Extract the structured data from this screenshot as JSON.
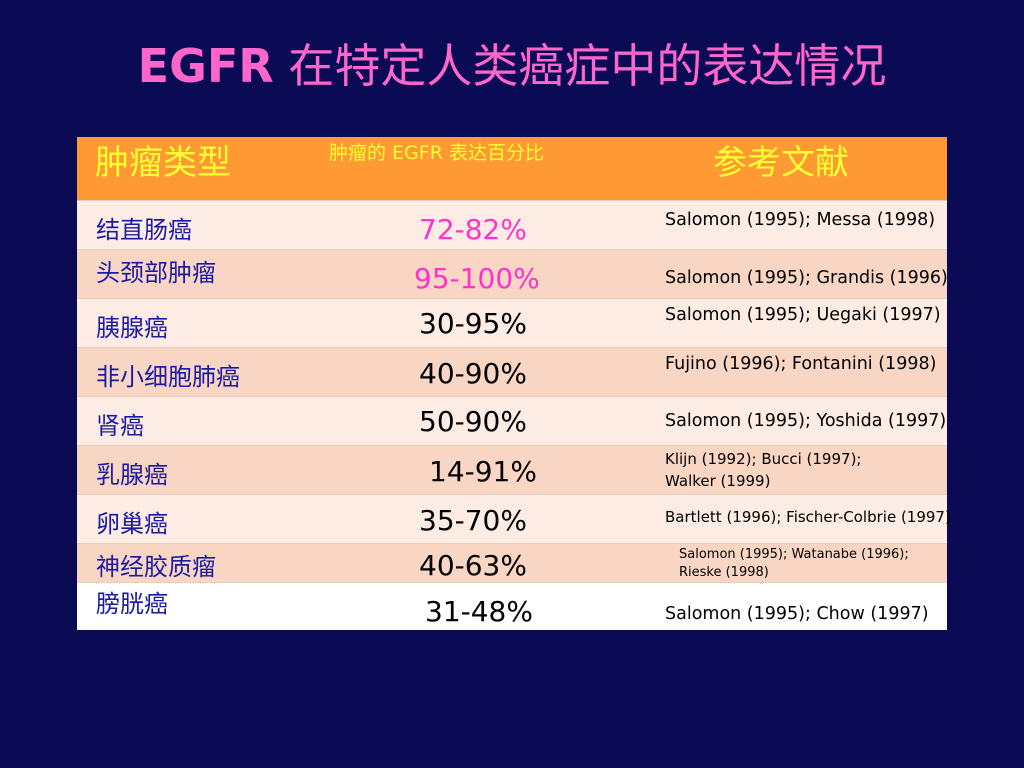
{
  "title": {
    "en": "EGFR",
    "zh": "在特定人类癌症中的表达情况"
  },
  "table": {
    "headers": {
      "type": "肿瘤类型",
      "percent": "肿瘤的 EGFR 表达百分比",
      "refs": "参考文献"
    },
    "rows": [
      {
        "type": "结直肠癌",
        "percent": "72-82%",
        "ref1": "Salomon (1995); Messa (1998)",
        "ref2": ""
      },
      {
        "type": "头颈部肿瘤",
        "percent": "95-100%",
        "ref1": "Salomon (1995); Grandis (1996)",
        "ref2": ""
      },
      {
        "type": "胰腺癌",
        "percent": "30-95%",
        "ref1": "Salomon (1995); Uegaki (1997)",
        "ref2": ""
      },
      {
        "type": "非小细胞肺癌",
        "percent": "40-90%",
        "ref1": "Fujino (1996); Fontanini (1998)",
        "ref2": ""
      },
      {
        "type": "肾癌",
        "percent": "50-90%",
        "ref1": "Salomon (1995); Yoshida (1997)",
        "ref2": ""
      },
      {
        "type": "乳腺癌",
        "percent": "14-91%",
        "ref1": "Klijn (1992); Bucci (1997);",
        "ref2": "Walker (1999)"
      },
      {
        "type": "卵巢癌",
        "percent": "35-70%",
        "ref1": "Bartlett (1996); Fischer-Colbrie (1997)",
        "ref2": ""
      },
      {
        "type": "神经胶质瘤",
        "percent": "40-63%",
        "ref1": "Salomon (1995); Watanabe (1996);",
        "ref2": "Rieske (1998)"
      },
      {
        "type": "膀胱癌",
        "percent": "31-48%",
        "ref1": "Salomon (1995); Chow (1997)",
        "ref2": ""
      }
    ]
  },
  "colors": {
    "background": "#0b0a54",
    "title": "#ff66cc",
    "header_bg": "#ff9933",
    "header_text": "#ffff33",
    "row_light": "#fdece4",
    "row_dark": "#f9d6c3",
    "type_text": "#1a1aa6",
    "pct_highlight": "#ff33cc"
  }
}
